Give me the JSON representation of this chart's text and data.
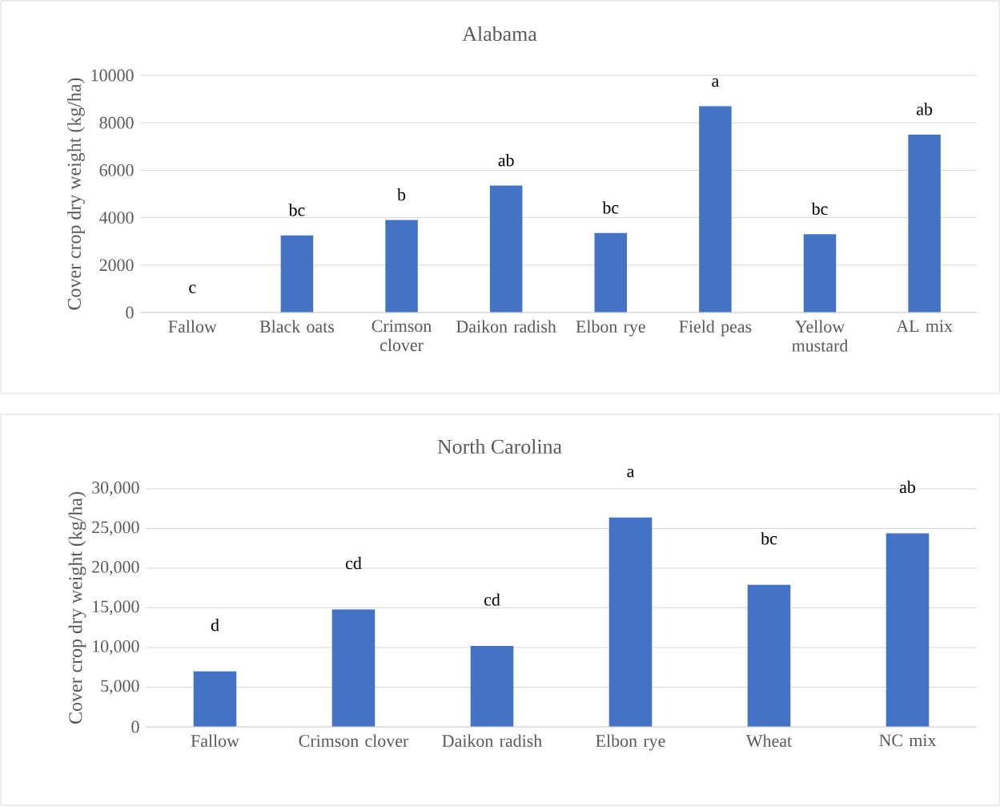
{
  "chart_data": [
    {
      "type": "bar",
      "title": "Alabama",
      "ylabel": "Cover crop dry weight (kg/ha)",
      "categories": [
        "Fallow",
        "Black oats",
        "Crimson clover",
        "Daikon radish",
        "Elbon rye",
        "Field peas",
        "Yellow mustard",
        "AL mix"
      ],
      "values": [
        0,
        3250,
        3900,
        5350,
        3350,
        8700,
        3300,
        7500
      ],
      "color": "#4472c4",
      "ylim": [
        0,
        10000
      ],
      "yticks": [
        0,
        2000,
        4000,
        6000,
        8000,
        10000
      ],
      "grid": "y",
      "annotations": [
        {
          "text": "c",
          "x": "Fallow",
          "y": 0
        },
        {
          "text": "bc",
          "x": "Black oats",
          "y": 3250
        },
        {
          "text": "b",
          "x": "Crimson clover",
          "y": 3900
        },
        {
          "text": "ab",
          "x": "Daikon radish",
          "y": 5350
        },
        {
          "text": "bc",
          "x": "Elbon rye",
          "y": 3350
        },
        {
          "text": "a",
          "x": "Field peas",
          "y": 8700
        },
        {
          "text": "bc",
          "x": "Yellow mustard",
          "y": 3300
        },
        {
          "text": "ab",
          "x": "AL mix",
          "y": 7500
        }
      ]
    },
    {
      "type": "bar",
      "title": "North Carolina",
      "ylabel": "Cover crop dry weight (kg/ha)",
      "categories": [
        "Fallow",
        "Crimson clover",
        "Daikon radish",
        "Elbon rye",
        "Wheat",
        "NC mix"
      ],
      "values": [
        7000,
        14800,
        10200,
        26400,
        17900,
        24400
      ],
      "color": "#4472c4",
      "ylim": [
        0,
        30000
      ],
      "yticks": [
        {
          "value": 0,
          "label": "0"
        },
        {
          "value": 5000,
          "label": "5,000"
        },
        {
          "value": 10000,
          "label": "10,000"
        },
        {
          "value": 15000,
          "label": "15,000"
        },
        {
          "value": 20000,
          "label": "20,000"
        },
        {
          "value": 25000,
          "label": "25,000"
        },
        {
          "value": 30000,
          "label": "30,000"
        }
      ],
      "grid": "y",
      "annotations": [
        {
          "text": "d",
          "x": "Fallow",
          "y": 7000
        },
        {
          "text": "cd",
          "x": "Crimson clover",
          "y": 14800
        },
        {
          "text": "cd",
          "x": "Daikon radish",
          "y": 10200
        },
        {
          "text": "a",
          "x": "Elbon rye",
          "y": 26400
        },
        {
          "text": "bc",
          "x": "Wheat",
          "y": 17900
        },
        {
          "text": "ab",
          "x": "NC mix",
          "y": 24400
        }
      ]
    }
  ]
}
